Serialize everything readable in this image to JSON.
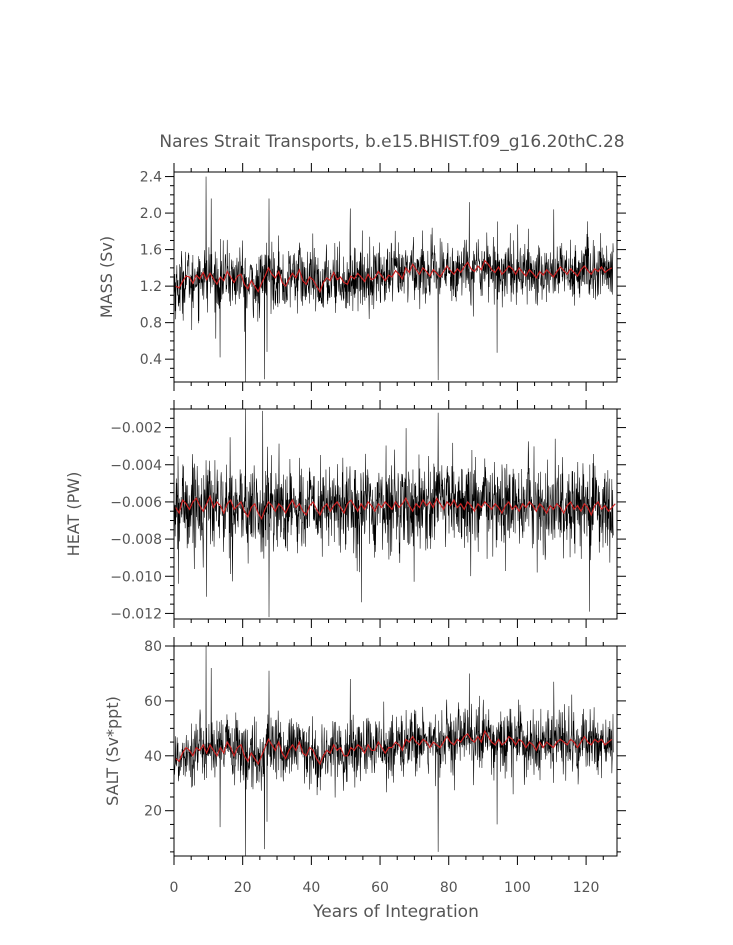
{
  "chart_data": {
    "type": "line",
    "title": "Nares Strait Transports, b.e15.BHIST.f09_g16.20thC.28",
    "xlabel": "Years of Integration",
    "xlim": [
      0,
      129
    ],
    "xticks": [
      0,
      20,
      40,
      60,
      80,
      100,
      120
    ],
    "xtick_labels": [
      "0",
      "20",
      "40",
      "60",
      "80",
      "100",
      "120"
    ],
    "series_colors": {
      "monthly": "#000000",
      "annual": "#cc2222"
    },
    "panels": [
      {
        "id": "mass",
        "ylabel": "MASS (Sv)",
        "ylim": [
          0.15,
          2.45
        ],
        "yticks": [
          0.4,
          0.8,
          1.2,
          1.6,
          2.0,
          2.4
        ],
        "ytick_labels": [
          "0.4",
          "0.8",
          "1.2",
          "1.6",
          "2.0",
          "2.4"
        ],
        "base": 1.28,
        "annual_mean": [
          1.2,
          1.18,
          1.25,
          1.31,
          1.3,
          1.23,
          1.32,
          1.28,
          1.35,
          1.27,
          1.34,
          1.28,
          1.22,
          1.3,
          1.26,
          1.36,
          1.3,
          1.24,
          1.31,
          1.33,
          1.22,
          1.17,
          1.26,
          1.2,
          1.14,
          1.23,
          1.31,
          1.4,
          1.33,
          1.29,
          1.36,
          1.24,
          1.2,
          1.28,
          1.34,
          1.29,
          1.38,
          1.26,
          1.22,
          1.3,
          1.27,
          1.2,
          1.14,
          1.24,
          1.29,
          1.26,
          1.35,
          1.27,
          1.3,
          1.24,
          1.22,
          1.31,
          1.28,
          1.34,
          1.3,
          1.25,
          1.33,
          1.27,
          1.29,
          1.36,
          1.31,
          1.26,
          1.32,
          1.3,
          1.37,
          1.33,
          1.28,
          1.4,
          1.35,
          1.44,
          1.38,
          1.33,
          1.4,
          1.36,
          1.31,
          1.38,
          1.34,
          1.3,
          1.36,
          1.42,
          1.37,
          1.33,
          1.39,
          1.35,
          1.41,
          1.46,
          1.39,
          1.36,
          1.42,
          1.38,
          1.48,
          1.44,
          1.38,
          1.35,
          1.41,
          1.33,
          1.37,
          1.42,
          1.39,
          1.33,
          1.4,
          1.35,
          1.31,
          1.38,
          1.34,
          1.29,
          1.36,
          1.32,
          1.38,
          1.34,
          1.3,
          1.36,
          1.41,
          1.37,
          1.33,
          1.39,
          1.35,
          1.31,
          1.38,
          1.42,
          1.37,
          1.33,
          1.39,
          1.36,
          1.41,
          1.35,
          1.38,
          1.4
        ],
        "noise_sd": 0.17,
        "spikes": [
          [
            9.3,
            2.4
          ],
          [
            10.8,
            2.16
          ],
          [
            20.8,
            0.15
          ],
          [
            26.3,
            0.18
          ],
          [
            27.7,
            2.16
          ],
          [
            51.3,
            2.05
          ],
          [
            76.9,
            0.17
          ],
          [
            86.0,
            2.12
          ],
          [
            110.6,
            2.04
          ],
          [
            27.1,
            0.48
          ],
          [
            13.4,
            0.42
          ],
          [
            94.1,
            0.47
          ],
          [
            5.2,
            0.72
          ]
        ]
      },
      {
        "id": "heat",
        "ylabel": "HEAT (PW)",
        "ylim": [
          -0.0123,
          -0.001
        ],
        "yticks": [
          -0.012,
          -0.01,
          -0.008,
          -0.006,
          -0.004,
          -0.002
        ],
        "ytick_labels": [
          "−0.012",
          "−0.010",
          "−0.008",
          "−0.006",
          "−0.004",
          "−0.002"
        ],
        "base": -0.0063,
        "annual_mean": [
          -0.0063,
          -0.0066,
          -0.0059,
          -0.0061,
          -0.0064,
          -0.006,
          -0.0058,
          -0.0062,
          -0.0065,
          -0.0061,
          -0.0057,
          -0.0063,
          -0.006,
          -0.0062,
          -0.0066,
          -0.0061,
          -0.0059,
          -0.0064,
          -0.0062,
          -0.006,
          -0.0065,
          -0.0068,
          -0.0063,
          -0.0061,
          -0.0066,
          -0.0069,
          -0.0064,
          -0.006,
          -0.0062,
          -0.0065,
          -0.0061,
          -0.0063,
          -0.0066,
          -0.0062,
          -0.0059,
          -0.0063,
          -0.0061,
          -0.0065,
          -0.0067,
          -0.0062,
          -0.006,
          -0.0064,
          -0.0067,
          -0.0063,
          -0.0061,
          -0.0065,
          -0.0062,
          -0.006,
          -0.0063,
          -0.0066,
          -0.0061,
          -0.0059,
          -0.0062,
          -0.0065,
          -0.0061,
          -0.0064,
          -0.006,
          -0.0062,
          -0.0065,
          -0.0061,
          -0.0063,
          -0.006,
          -0.0062,
          -0.0064,
          -0.006,
          -0.0063,
          -0.0061,
          -0.0058,
          -0.0062,
          -0.0065,
          -0.0061,
          -0.0063,
          -0.0059,
          -0.0062,
          -0.006,
          -0.0063,
          -0.0058,
          -0.0061,
          -0.0064,
          -0.006,
          -0.0062,
          -0.0059,
          -0.0063,
          -0.0061,
          -0.0064,
          -0.006,
          -0.0062,
          -0.0065,
          -0.0061,
          -0.0063,
          -0.006,
          -0.0062,
          -0.0064,
          -0.0061,
          -0.0063,
          -0.0066,
          -0.0062,
          -0.006,
          -0.0064,
          -0.0062,
          -0.0065,
          -0.0061,
          -0.0063,
          -0.006,
          -0.0062,
          -0.0065,
          -0.0061,
          -0.0063,
          -0.0066,
          -0.0062,
          -0.0064,
          -0.0061,
          -0.0063,
          -0.0066,
          -0.0062,
          -0.006,
          -0.0064,
          -0.0062,
          -0.0065,
          -0.0061,
          -0.0063,
          -0.0067,
          -0.0062,
          -0.006,
          -0.0064,
          -0.0062,
          -0.0065,
          -0.0063,
          -0.0061
        ],
        "noise_sd": 0.0012,
        "spikes": [
          [
            20.8,
            -0.001
          ],
          [
            25.8,
            -0.0011
          ],
          [
            76.9,
            -0.0012
          ],
          [
            27.7,
            -0.0122
          ],
          [
            54.6,
            -0.0114
          ],
          [
            121.0,
            -0.0119
          ],
          [
            9.5,
            -0.0111
          ],
          [
            1.3,
            -0.0104
          ]
        ]
      },
      {
        "id": "salt",
        "ylabel": "SALT (Sv*ppt)",
        "ylim": [
          3.5,
          80
        ],
        "yticks": [
          20,
          40,
          60,
          80
        ],
        "ytick_labels": [
          "20",
          "40",
          "60",
          "80"
        ],
        "base": 41,
        "annual_mean": [
          39,
          38,
          41,
          43,
          42,
          40,
          43,
          42,
          44,
          41,
          44,
          42,
          40,
          43,
          41,
          45,
          43,
          40,
          43,
          44,
          40,
          38,
          41,
          39,
          37,
          40,
          43,
          46,
          44,
          42,
          45,
          41,
          39,
          42,
          44,
          42,
          45,
          41,
          40,
          43,
          42,
          39,
          37,
          40,
          42,
          41,
          44,
          42,
          43,
          40,
          40,
          43,
          42,
          44,
          43,
          41,
          44,
          42,
          42,
          45,
          43,
          41,
          43,
          43,
          45,
          44,
          42,
          46,
          45,
          47,
          45,
          44,
          46,
          45,
          43,
          45,
          44,
          43,
          45,
          47,
          45,
          44,
          46,
          45,
          47,
          48,
          46,
          45,
          47,
          45,
          49,
          47,
          45,
          44,
          46,
          44,
          45,
          47,
          46,
          44,
          46,
          45,
          43,
          45,
          44,
          42,
          45,
          43,
          45,
          44,
          43,
          45,
          46,
          45,
          44,
          46,
          45,
          43,
          45,
          47,
          45,
          44,
          46,
          45,
          46,
          44,
          45,
          46
        ],
        "noise_sd": 5.8,
        "spikes": [
          [
            9.3,
            80
          ],
          [
            10.8,
            72
          ],
          [
            20.8,
            3.5
          ],
          [
            26.3,
            6
          ],
          [
            27.7,
            71
          ],
          [
            51.3,
            68
          ],
          [
            76.9,
            5
          ],
          [
            86.0,
            70
          ],
          [
            110.6,
            67
          ],
          [
            13.4,
            14
          ],
          [
            94.1,
            15
          ],
          [
            27.1,
            16
          ]
        ]
      }
    ]
  }
}
